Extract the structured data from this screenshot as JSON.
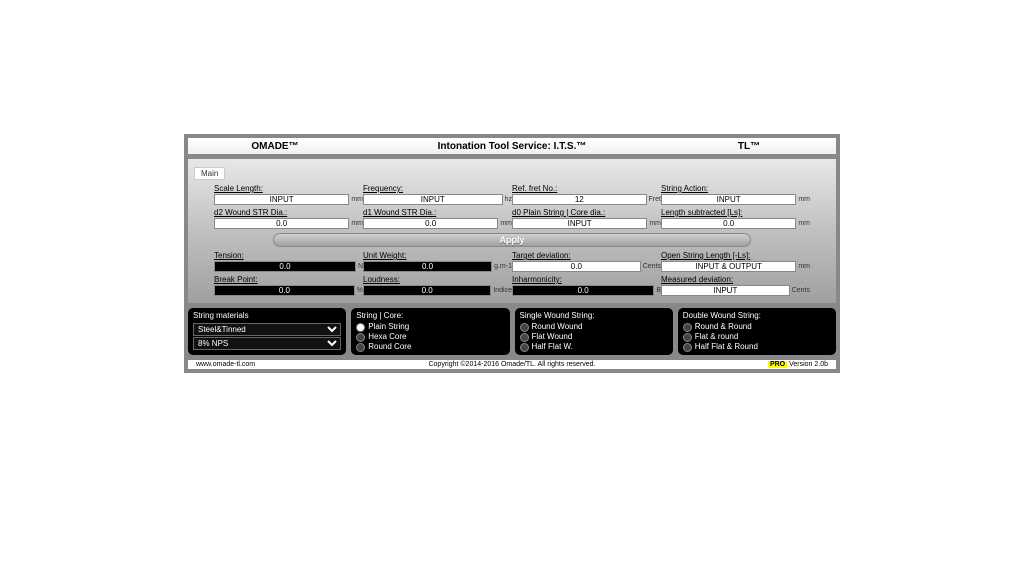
{
  "header": {
    "left": "OMADE™",
    "center": "Intonation Tool Service: I.T.S.™",
    "right": "TL™"
  },
  "tab": "Main",
  "fields": {
    "r1": [
      {
        "label": "Scale Length:",
        "value": "INPUT",
        "unit": "mm",
        "style": "white"
      },
      {
        "label": "Frequency:",
        "value": "INPUT",
        "unit": "hz",
        "style": "white"
      },
      {
        "label": "Ref. fret No.:",
        "value": "12",
        "unit": "Fret",
        "style": "white"
      },
      {
        "label": "String Action:",
        "value": "INPUT",
        "unit": "mm",
        "style": "white"
      }
    ],
    "r2": [
      {
        "label": "d2 Wound STR Dia.:",
        "value": "0.0",
        "unit": "mm",
        "style": "white"
      },
      {
        "label": "d1 Wound STR Dia.:",
        "value": "0.0",
        "unit": "mm",
        "style": "white"
      },
      {
        "label": "d0 Plain String | Core dia.:",
        "value": "INPUT",
        "unit": "mm",
        "style": "white"
      },
      {
        "label": "Length subtracted [Ls]:",
        "value": "0.0",
        "unit": "mm",
        "style": "white"
      }
    ],
    "r3": [
      {
        "label": "Tension:",
        "value": "0.0",
        "unit": "N",
        "style": "black"
      },
      {
        "label": "Unit Weight:",
        "value": "0.0",
        "unit": "g.m-1",
        "style": "black"
      },
      {
        "label": "Target deviation:",
        "value": "0.0",
        "unit": "Cents",
        "style": "white"
      },
      {
        "label": "Open String Length [-Ls]:",
        "value": "INPUT & OUTPUT",
        "unit": "mm",
        "style": "white"
      }
    ],
    "r4": [
      {
        "label": "Break Point:",
        "value": "0.0",
        "unit": "%",
        "style": "black"
      },
      {
        "label": "Loudness:",
        "value": "0.0",
        "unit": "Indice",
        "style": "black"
      },
      {
        "label": "Inharmonicity:",
        "value": "0.0",
        "unit": "B",
        "style": "black"
      },
      {
        "label": "Measured deviation:",
        "value": "INPUT",
        "unit": "Cents",
        "style": "white"
      }
    ]
  },
  "apply": "Apply",
  "options": {
    "materials": {
      "title": "String materials",
      "select1": "Steel&Tinned",
      "select2": "8% NPS"
    },
    "core": {
      "title": "String | Core:",
      "opts": [
        "Plain String",
        "Hexa Core",
        "Round Core"
      ],
      "selected": 0
    },
    "single": {
      "title": "Single Wound String:",
      "opts": [
        "Round Wound",
        "Flat Wound",
        "Half Flat W."
      ],
      "selected": -1
    },
    "double": {
      "title": "Double Wound String:",
      "opts": [
        "Round & Round",
        "Flat & round",
        "Half Flat & Round"
      ],
      "selected": -1
    }
  },
  "footer": {
    "url": "www.omade-tl.com",
    "copyright": "Copyright ©2014-2016 Omade/TL. All rights reserved.",
    "pro": "PRO",
    "version": " Version 2.0b"
  }
}
